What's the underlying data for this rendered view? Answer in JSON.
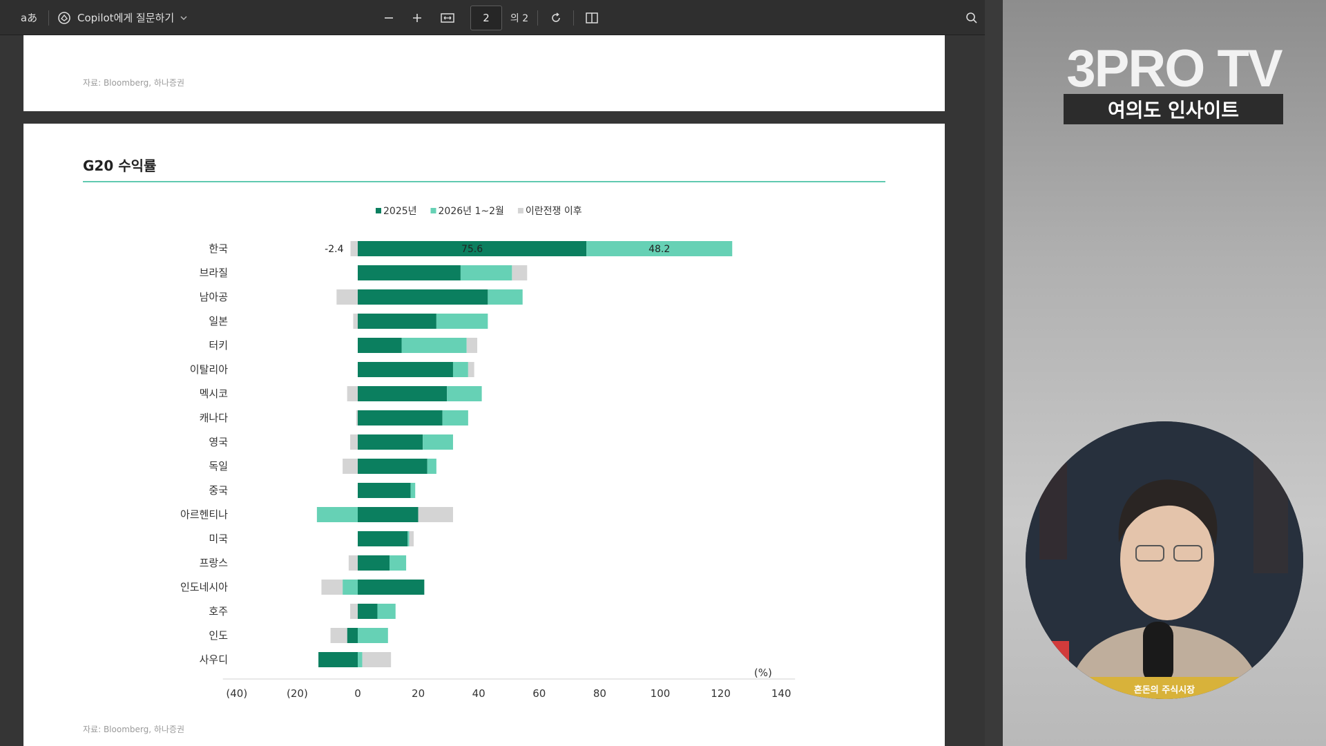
{
  "toolbar": {
    "read_aloud_label": "aあ",
    "copilot_label": "Copilot에게 질문하기",
    "page_current": "2",
    "page_total": "의 2"
  },
  "page1": {
    "source": "자료: Bloomberg, 하나증권"
  },
  "page2": {
    "title": "G20 수익률",
    "source": "자료: Bloomberg, 하나증권"
  },
  "chart_data": {
    "type": "bar",
    "orientation": "horizontal",
    "stacked": true,
    "title": "G20 수익률",
    "unit_label": "(%)",
    "xlim": [
      -40,
      140
    ],
    "x_ticks": [
      "(40)",
      "(20)",
      "0",
      "20",
      "40",
      "60",
      "80",
      "100",
      "120",
      "140"
    ],
    "x_tick_values": [
      -40,
      -20,
      0,
      20,
      40,
      60,
      80,
      100,
      120,
      140
    ],
    "legend_position": "top",
    "categories": [
      "한국",
      "브라질",
      "남아공",
      "일본",
      "터키",
      "이탈리아",
      "멕시코",
      "캐나다",
      "영국",
      "독일",
      "중국",
      "아르헨티나",
      "미국",
      "프랑스",
      "인도네시아",
      "호주",
      "인도",
      "사우디"
    ],
    "series": [
      {
        "name": "2025년",
        "color": "#0b7f5f",
        "values": [
          75.6,
          34,
          43,
          26,
          14.5,
          31.5,
          29.5,
          28,
          21.5,
          23,
          17.5,
          20,
          16.5,
          10.5,
          22,
          6.5,
          -3.5,
          -13
        ]
      },
      {
        "name": "2026년 1~2월",
        "color": "#66d1b5",
        "values": [
          48.2,
          17,
          11.5,
          17,
          21.5,
          5,
          11.5,
          8.5,
          10,
          3,
          1.5,
          -13.5,
          0.5,
          5.5,
          -5,
          6,
          10,
          1.5
        ]
      },
      {
        "name": "이란전쟁 이후",
        "color": "#d4d4d4",
        "values": [
          -2.4,
          5,
          -7,
          -1.5,
          3.5,
          2,
          -3.5,
          -0.5,
          -2.5,
          -5,
          0,
          11.5,
          1.5,
          -3,
          -7,
          -2.5,
          -5.5,
          9.5
        ]
      }
    ],
    "data_labels": [
      {
        "category": "한국",
        "series": "2025년",
        "text": "75.6"
      },
      {
        "category": "한국",
        "series": "2026년 1~2월",
        "text": "48.2"
      },
      {
        "category": "한국",
        "series": "이란전쟁 이후",
        "text": "-2.4"
      }
    ]
  },
  "side_panel": {
    "brand": "3PRO TV",
    "subtitle": "여의도 인사이트",
    "banner": "혼돈의 주식시장"
  },
  "colors": {
    "accent": "#5fc9b0",
    "dark_green": "#0b7f5f",
    "light_green": "#66d1b5",
    "gray": "#d4d4d4"
  }
}
